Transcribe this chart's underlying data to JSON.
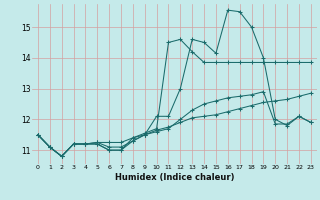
{
  "xlabel": "Humidex (Indice chaleur)",
  "ylabel": "",
  "bg_color": "#c5eaea",
  "grid_color": "#d4a0a0",
  "line_color": "#1a6b6b",
  "xlim": [
    -0.5,
    23.5
  ],
  "ylim": [
    10.55,
    15.75
  ],
  "xticks": [
    0,
    1,
    2,
    3,
    4,
    5,
    6,
    7,
    8,
    9,
    10,
    11,
    12,
    13,
    14,
    15,
    16,
    17,
    18,
    19,
    20,
    21,
    22,
    23
  ],
  "yticks": [
    11,
    12,
    13,
    14,
    15
  ],
  "series": [
    [
      11.5,
      11.1,
      10.8,
      11.2,
      11.2,
      11.2,
      11.0,
      11.0,
      11.3,
      11.5,
      12.1,
      12.1,
      13.0,
      14.6,
      14.5,
      14.15,
      15.55,
      15.5,
      15.0,
      14.0,
      12.0,
      11.8,
      12.1,
      11.9
    ],
    [
      11.5,
      11.1,
      10.8,
      11.2,
      11.2,
      11.2,
      11.0,
      11.0,
      11.4,
      11.55,
      11.7,
      14.5,
      14.6,
      14.2,
      13.85,
      13.85,
      13.85,
      13.85,
      13.85,
      13.85,
      13.85,
      13.85,
      13.85,
      13.85
    ],
    [
      11.5,
      11.1,
      10.8,
      11.2,
      11.2,
      11.25,
      11.25,
      11.25,
      11.4,
      11.5,
      11.65,
      11.75,
      11.9,
      12.05,
      12.1,
      12.15,
      12.25,
      12.35,
      12.45,
      12.55,
      12.6,
      12.65,
      12.75,
      12.85
    ],
    [
      11.5,
      11.1,
      10.8,
      11.2,
      11.2,
      11.25,
      11.1,
      11.1,
      11.3,
      11.5,
      11.6,
      11.7,
      12.0,
      12.3,
      12.5,
      12.6,
      12.7,
      12.75,
      12.8,
      12.9,
      11.85,
      11.85,
      12.1,
      11.9
    ]
  ]
}
